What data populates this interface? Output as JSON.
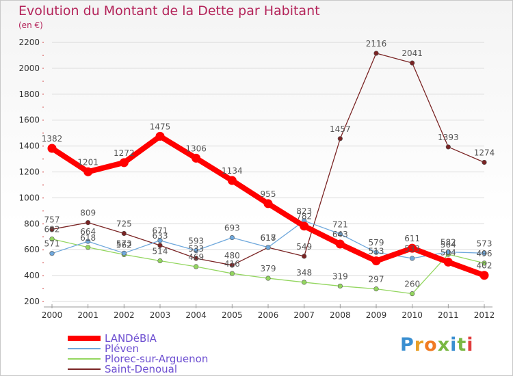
{
  "header": {
    "title": "Evolution du Montant de la Dette par Habitant",
    "unit": "(en €)"
  },
  "brand": {
    "name": "Proxiti",
    "letter_colors": [
      "#3a8fd1",
      "#e8a028",
      "#f07b23",
      "#7ab843",
      "#3a8fd1",
      "#7ab843",
      "#e03c3c"
    ]
  },
  "colors": {
    "axis_text": "#333333",
    "grid": "#d9d9d9",
    "title": "#b4245a"
  },
  "chart_data": {
    "type": "line",
    "title": "Evolution du Montant de la Dette par Habitant",
    "subtitle": "(en €)",
    "xlabel": "",
    "ylabel": "",
    "x": [
      "2000",
      "2001",
      "2002",
      "2003",
      "2004",
      "2005",
      "2006",
      "2007",
      "2008",
      "2009",
      "2010",
      "2011",
      "2012"
    ],
    "ylim": [
      200,
      2200
    ],
    "yticks": [
      200,
      400,
      600,
      800,
      1000,
      1200,
      1400,
      1600,
      1800,
      2000,
      2200
    ],
    "grid": true,
    "legend_position": "bottom-left",
    "series": [
      {
        "name": "LANDéBIA",
        "color": "#ff0000",
        "values": [
          1382,
          1201,
          1272,
          1475,
          1306,
          1134,
          955,
          782,
          643,
          513,
          611,
          504,
          402
        ]
      },
      {
        "name": "Pléven",
        "color": "#6fa8dc",
        "values": [
          571,
          664,
          573,
          671,
          593,
          693,
          618,
          823,
          721,
          579,
          533,
          582,
          573
        ]
      },
      {
        "name": "Plorec-sur-Arguenon",
        "color": "#93d65f",
        "values": [
          682,
          618,
          562,
          514,
          469,
          416,
          379,
          348,
          319,
          297,
          260,
          564,
          496
        ]
      },
      {
        "name": "Saint-Denoual",
        "color": "#7a2424",
        "values": [
          757,
          809,
          725,
          633,
          533,
          480,
          617,
          549,
          1457,
          2116,
          2041,
          1393,
          1274
        ]
      }
    ]
  }
}
